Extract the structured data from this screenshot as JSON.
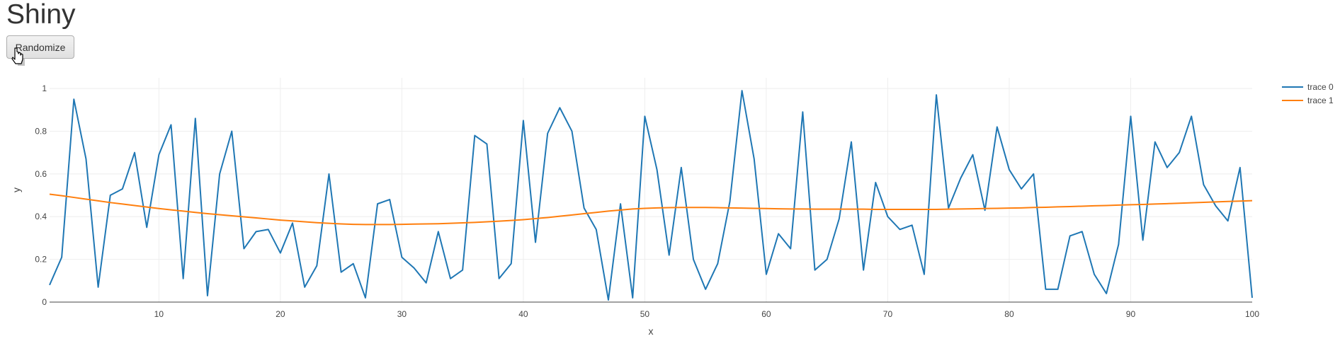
{
  "app": {
    "title": "Shiny",
    "button_label": "Randomize"
  },
  "chart_data": {
    "type": "line",
    "title": "",
    "xlabel": "x",
    "ylabel": "y",
    "xlim": [
      1,
      100
    ],
    "ylim": [
      0,
      1.05
    ],
    "x_ticks": [
      10,
      20,
      30,
      40,
      50,
      60,
      70,
      80,
      90,
      100
    ],
    "y_ticks": [
      0,
      0.2,
      0.4,
      0.6,
      0.8,
      1
    ],
    "y_tick_labels": [
      "0",
      "0.2",
      "0.4",
      "0.6",
      "0.8",
      "1"
    ],
    "grid": true,
    "legend_position": "top-right",
    "series": [
      {
        "name": "trace 0",
        "color": "#1f77b4",
        "values": [
          0.08,
          0.21,
          0.95,
          0.67,
          0.07,
          0.5,
          0.53,
          0.7,
          0.35,
          0.69,
          0.83,
          0.11,
          0.86,
          0.03,
          0.6,
          0.8,
          0.25,
          0.33,
          0.34,
          0.23,
          0.37,
          0.07,
          0.17,
          0.6,
          0.14,
          0.18,
          0.02,
          0.46,
          0.48,
          0.21,
          0.16,
          0.09,
          0.33,
          0.11,
          0.15,
          0.78,
          0.74,
          0.11,
          0.18,
          0.85,
          0.28,
          0.79,
          0.91,
          0.8,
          0.44,
          0.34,
          0.01,
          0.46,
          0.02,
          0.87,
          0.62,
          0.22,
          0.63,
          0.2,
          0.06,
          0.18,
          0.47,
          0.99,
          0.67,
          0.13,
          0.32,
          0.25,
          0.89,
          0.15,
          0.2,
          0.39,
          0.75,
          0.15,
          0.56,
          0.4,
          0.34,
          0.36,
          0.13,
          0.97,
          0.44,
          0.58,
          0.69,
          0.43,
          0.82,
          0.62,
          0.53,
          0.6,
          0.06,
          0.06,
          0.31,
          0.33,
          0.13,
          0.04,
          0.27,
          0.87,
          0.29,
          0.75,
          0.63,
          0.7,
          0.87,
          0.55,
          0.45,
          0.38,
          0.63,
          0.02
        ]
      },
      {
        "name": "trace 1",
        "color": "#ff7f0e",
        "values": [
          0.505,
          0.498,
          0.49,
          0.482,
          0.474,
          0.466,
          0.459,
          0.452,
          0.445,
          0.438,
          0.432,
          0.426,
          0.42,
          0.414,
          0.409,
          0.404,
          0.399,
          0.394,
          0.389,
          0.384,
          0.38,
          0.376,
          0.372,
          0.369,
          0.366,
          0.364,
          0.363,
          0.363,
          0.363,
          0.364,
          0.365,
          0.366,
          0.367,
          0.369,
          0.371,
          0.373,
          0.376,
          0.379,
          0.382,
          0.386,
          0.391,
          0.396,
          0.402,
          0.408,
          0.414,
          0.42,
          0.426,
          0.431,
          0.436,
          0.439,
          0.441,
          0.442,
          0.443,
          0.443,
          0.443,
          0.442,
          0.441,
          0.44,
          0.439,
          0.438,
          0.437,
          0.436,
          0.436,
          0.435,
          0.435,
          0.435,
          0.435,
          0.435,
          0.434,
          0.434,
          0.434,
          0.434,
          0.434,
          0.434,
          0.435,
          0.436,
          0.437,
          0.438,
          0.439,
          0.44,
          0.441,
          0.443,
          0.444,
          0.446,
          0.447,
          0.449,
          0.451,
          0.452,
          0.454,
          0.456,
          0.457,
          0.459,
          0.461,
          0.463,
          0.465,
          0.467,
          0.469,
          0.471,
          0.473,
          0.475
        ]
      }
    ]
  }
}
